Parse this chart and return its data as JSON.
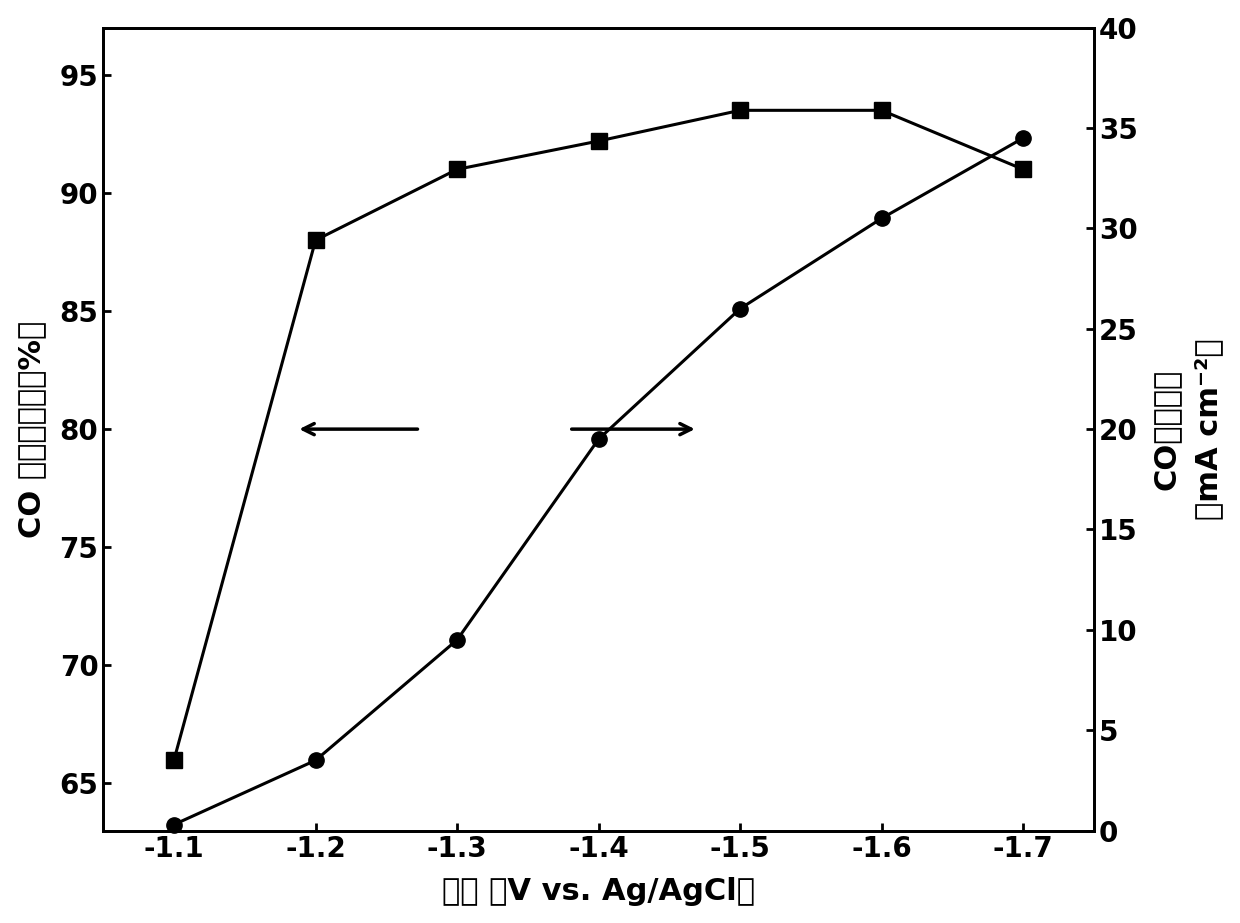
{
  "voltage": [
    -1.1,
    -1.2,
    -1.3,
    -1.4,
    -1.5,
    -1.6,
    -1.7
  ],
  "faradaic_efficiency": [
    66.0,
    88.0,
    91.0,
    92.2,
    93.5,
    93.5,
    91.0
  ],
  "current_density": [
    0.3,
    3.5,
    9.5,
    19.5,
    26.0,
    30.5,
    34.5
  ],
  "left_ylabel": "CO 法拉第效率（%）",
  "right_ylabel_top": "CO电流密度",
  "right_ylabel_bot": "（mA cm⁻²）",
  "xlabel": "电压 （V vs. Ag/AgCl）",
  "left_ylim": [
    63,
    97
  ],
  "right_ylim": [
    0,
    40
  ],
  "left_yticks": [
    65,
    70,
    75,
    80,
    85,
    90,
    95
  ],
  "right_yticks": [
    0,
    5,
    10,
    15,
    20,
    25,
    30,
    35,
    40
  ],
  "xticks": [
    -1.1,
    -1.2,
    -1.3,
    -1.4,
    -1.5,
    -1.6,
    -1.7
  ],
  "xlim": [
    -1.05,
    -1.75
  ],
  "line_color": "#000000",
  "marker_square": "s",
  "marker_circle": "o",
  "marker_size": 11,
  "linewidth": 2.2,
  "background_color": "#ffffff",
  "fontsize_ylabel": 22,
  "fontsize_ticks": 20,
  "fontsize_xlabel": 22
}
